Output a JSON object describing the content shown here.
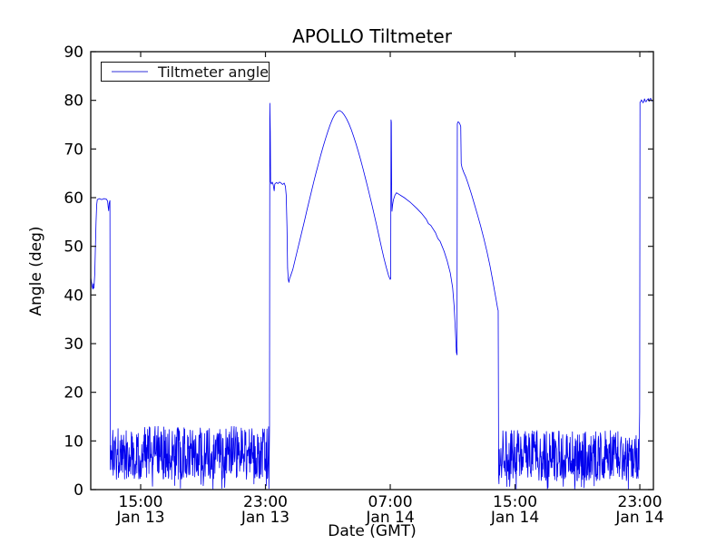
{
  "figure": {
    "title": "APOLLO Tiltmeter",
    "background": "#ffffff"
  },
  "legend": {
    "label": "Tiltmeter angle",
    "sample_color": "#9898ec"
  },
  "colors": {
    "line": "#0000ee",
    "axis": "#1a1a1a",
    "text": "#000000"
  },
  "axes": {
    "xlabel": "Date (GMT)",
    "ylabel": "Angle (deg)",
    "ylim": [
      0,
      90
    ],
    "yticks": [
      0,
      10,
      20,
      30,
      40,
      50,
      60,
      70,
      80,
      90
    ],
    "xlim_hours": [
      11.8,
      47.87
    ],
    "xticks": [
      {
        "hour": 15,
        "time": "15:00",
        "date": "Jan 13"
      },
      {
        "hour": 23,
        "time": "23:00",
        "date": "Jan 13"
      },
      {
        "hour": 31,
        "time": "07:00",
        "date": "Jan 14"
      },
      {
        "hour": 39,
        "time": "15:00",
        "date": "Jan 14"
      },
      {
        "hour": 47,
        "time": "23:00",
        "date": "Jan 14"
      }
    ]
  },
  "chart_data": {
    "type": "line",
    "title": "APOLLO Tiltmeter",
    "xlabel": "Date (GMT)",
    "ylabel": "Angle (deg)",
    "ylim": [
      0,
      90
    ],
    "x_unit": "hours since Jan 13 00:00 GMT",
    "xlim": [
      11.8,
      47.87
    ],
    "grid": false,
    "legend_position": "upper left",
    "series": [
      {
        "name": "Tiltmeter angle",
        "color": "#0000ee",
        "segments": [
          {
            "type": "points",
            "jitter": 0.25,
            "step": 0.1,
            "pts": [
              [
                11.8,
                43.6
              ],
              [
                11.83,
                43.0
              ],
              [
                11.87,
                42.2
              ],
              [
                11.9,
                41.6
              ],
              [
                11.94,
                41.2
              ],
              [
                11.97,
                42.3
              ],
              [
                12.0,
                41.4
              ],
              [
                12.03,
                42.8
              ],
              [
                12.06,
                44.5
              ],
              [
                12.1,
                50.0
              ],
              [
                12.14,
                55.0
              ],
              [
                12.18,
                58.5
              ],
              [
                12.22,
                59.6
              ],
              [
                12.35,
                59.8
              ],
              [
                12.5,
                59.6
              ],
              [
                12.65,
                59.8
              ],
              [
                12.8,
                59.7
              ],
              [
                12.88,
                59.3
              ],
              [
                12.92,
                58.0
              ],
              [
                12.95,
                57.3
              ],
              [
                12.98,
                58.8
              ],
              [
                13.01,
                59.2
              ],
              [
                13.03,
                59.4
              ]
            ]
          },
          {
            "type": "noise",
            "t0": 13.05,
            "t1": 23.22,
            "mean": 7.5,
            "spread": 5.5,
            "min": 0.0,
            "max": 13.5,
            "zero_dip_rate": 0.025,
            "per_hour": 48
          },
          {
            "type": "points",
            "jitter": 0.3,
            "step": 0.1,
            "pts": [
              [
                23.26,
                12.0
              ],
              [
                23.28,
                79.4
              ],
              [
                23.31,
                73.5
              ],
              [
                23.33,
                63.2
              ],
              [
                23.38,
                62.8
              ],
              [
                23.44,
                63.2
              ],
              [
                23.5,
                62.6
              ],
              [
                23.56,
                61.4
              ],
              [
                23.6,
                62.8
              ],
              [
                23.7,
                63.1
              ],
              [
                23.8,
                62.9
              ],
              [
                23.9,
                63.2
              ],
              [
                24.0,
                63.0
              ],
              [
                24.1,
                62.7
              ],
              [
                24.2,
                63.0
              ],
              [
                24.28,
                62.3
              ],
              [
                24.33,
                60.5
              ],
              [
                24.38,
                54.0
              ],
              [
                24.42,
                45.5
              ],
              [
                24.46,
                43.3
              ],
              [
                24.5,
                42.6
              ],
              [
                24.55,
                43.4
              ],
              [
                24.6,
                43.8
              ]
            ]
          },
          {
            "type": "points",
            "jitter": 0.4,
            "step": 0.15,
            "pts": [
              [
                24.6,
                43.8
              ],
              [
                24.75,
                45.2
              ],
              [
                24.9,
                47.2
              ],
              [
                25.05,
                49.2
              ],
              [
                25.2,
                51.2
              ],
              [
                25.35,
                53.2
              ],
              [
                25.5,
                55.2
              ],
              [
                25.65,
                57.3
              ],
              [
                25.8,
                59.3
              ],
              [
                25.95,
                61.3
              ],
              [
                26.1,
                63.3
              ],
              [
                26.25,
                65.2
              ],
              [
                26.4,
                67.0
              ],
              [
                26.55,
                68.8
              ],
              [
                26.7,
                70.5
              ],
              [
                26.85,
                72.1
              ],
              [
                27.0,
                73.6
              ],
              [
                27.15,
                75.0
              ],
              [
                27.3,
                76.2
              ],
              [
                27.45,
                77.1
              ],
              [
                27.6,
                77.7
              ],
              [
                27.75,
                77.9
              ],
              [
                27.9,
                77.6
              ],
              [
                28.05,
                77.0
              ],
              [
                28.2,
                76.2
              ],
              [
                28.35,
                75.2
              ],
              [
                28.5,
                74.0
              ],
              [
                28.65,
                72.6
              ],
              [
                28.8,
                71.1
              ],
              [
                28.95,
                69.5
              ],
              [
                29.1,
                67.8
              ],
              [
                29.25,
                66.0
              ],
              [
                29.4,
                64.1
              ],
              [
                29.55,
                62.2
              ],
              [
                29.7,
                60.2
              ],
              [
                29.85,
                58.2
              ],
              [
                30.0,
                56.1
              ],
              [
                30.15,
                54.0
              ],
              [
                30.3,
                51.8
              ],
              [
                30.45,
                49.6
              ],
              [
                30.6,
                47.5
              ],
              [
                30.75,
                45.6
              ],
              [
                30.9,
                43.9
              ],
              [
                31.0,
                43.2
              ]
            ]
          },
          {
            "type": "points",
            "jitter": 0,
            "step": 0.1,
            "pts": [
              [
                31.03,
                43.4
              ],
              [
                31.05,
                76.0
              ],
              [
                31.07,
                75.5
              ],
              [
                31.09,
                62.0
              ],
              [
                31.11,
                57.2
              ],
              [
                31.15,
                58.5
              ],
              [
                31.2,
                59.5
              ],
              [
                31.3,
                60.5
              ],
              [
                31.4,
                61.0
              ],
              [
                31.5,
                60.8
              ]
            ]
          },
          {
            "type": "points",
            "jitter": 0.4,
            "step": 0.15,
            "pts": [
              [
                31.5,
                60.8
              ],
              [
                31.7,
                60.4
              ],
              [
                31.9,
                60.0
              ],
              [
                32.1,
                59.5
              ],
              [
                32.3,
                59.0
              ],
              [
                32.5,
                58.4
              ],
              [
                32.7,
                57.8
              ],
              [
                33.0,
                56.8
              ],
              [
                33.3,
                55.6
              ],
              [
                33.6,
                54.3
              ],
              [
                33.9,
                52.8
              ],
              [
                34.2,
                51.0
              ],
              [
                34.45,
                49.0
              ],
              [
                34.65,
                47.0
              ],
              [
                34.85,
                44.5
              ],
              [
                35.0,
                41.5
              ],
              [
                35.1,
                37.5
              ],
              [
                35.18,
                32.5
              ],
              [
                35.24,
                28.2
              ],
              [
                35.28,
                27.7
              ]
            ]
          },
          {
            "type": "points",
            "jitter": 0.35,
            "step": 0.15,
            "pts": [
              [
                35.3,
                75.2
              ],
              [
                35.35,
                75.6
              ],
              [
                35.42,
                75.4
              ],
              [
                35.48,
                75.0
              ],
              [
                35.52,
                74.6
              ],
              [
                35.55,
                67.0
              ],
              [
                35.6,
                66.2
              ],
              [
                35.7,
                65.3
              ],
              [
                35.85,
                64.2
              ],
              [
                36.0,
                62.8
              ],
              [
                36.2,
                60.8
              ],
              [
                36.4,
                58.6
              ],
              [
                36.6,
                56.4
              ],
              [
                36.8,
                54.1
              ],
              [
                37.0,
                51.6
              ],
              [
                37.2,
                48.9
              ],
              [
                37.4,
                45.9
              ],
              [
                37.55,
                43.3
              ],
              [
                37.7,
                40.6
              ],
              [
                37.8,
                38.8
              ],
              [
                37.88,
                37.3
              ],
              [
                37.92,
                36.8
              ]
            ]
          },
          {
            "type": "noise",
            "t0": 37.95,
            "t1": 46.97,
            "mean": 7.0,
            "spread": 5.2,
            "min": 0.0,
            "max": 12.5,
            "zero_dip_rate": 0.025,
            "per_hour": 48
          },
          {
            "type": "points",
            "jitter": 0.35,
            "step": 0.04,
            "pts": [
              [
                46.99,
                16.0
              ],
              [
                47.01,
                79.6
              ],
              [
                47.1,
                80.1
              ],
              [
                47.2,
                79.5
              ],
              [
                47.3,
                80.3
              ],
              [
                47.4,
                79.7
              ],
              [
                47.5,
                80.2
              ],
              [
                47.6,
                79.8
              ],
              [
                47.7,
                80.4
              ],
              [
                47.8,
                79.9
              ],
              [
                47.87,
                80.0
              ]
            ]
          }
        ]
      }
    ]
  }
}
